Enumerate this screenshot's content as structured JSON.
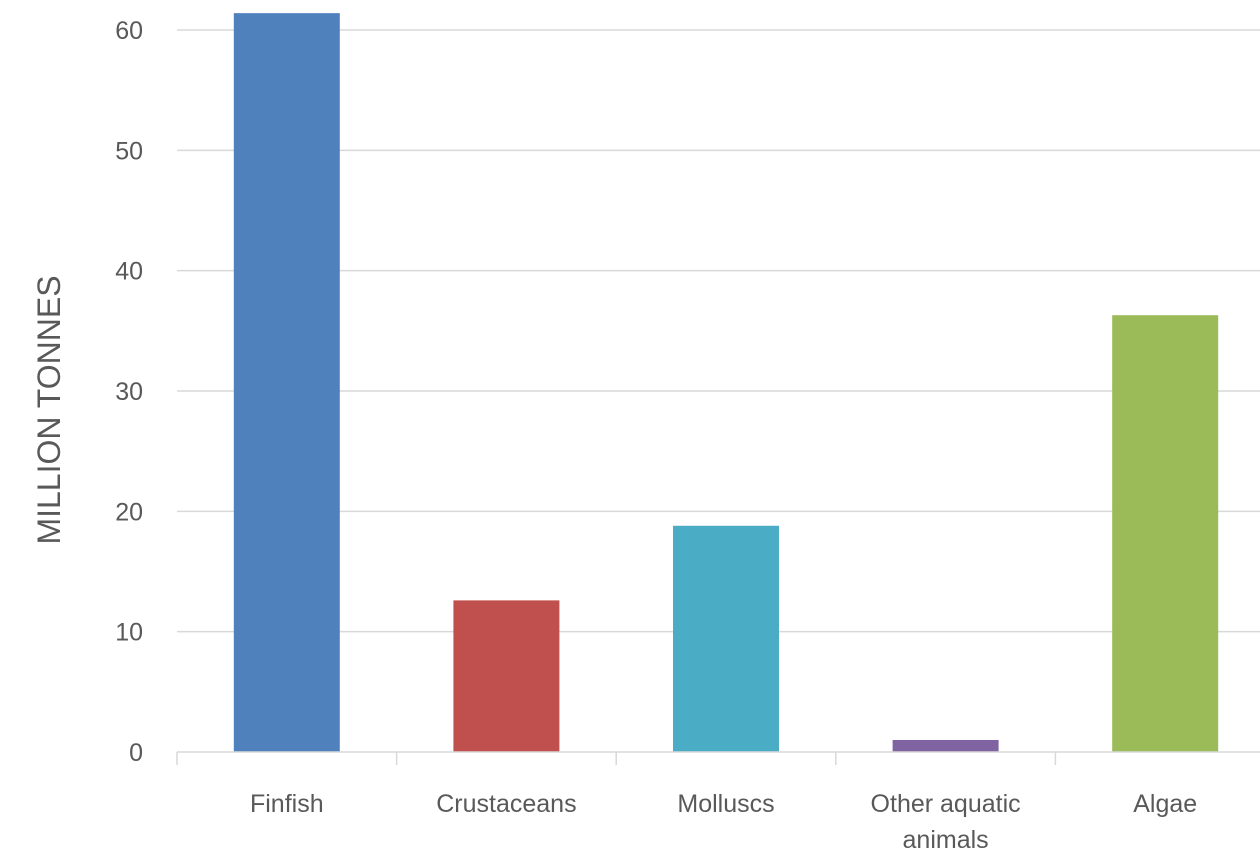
{
  "chart_data": {
    "type": "bar",
    "categories": [
      "Finfish",
      "Crustaceans",
      "Molluscs",
      "Other aquatic animals",
      "Algae"
    ],
    "category_lines": [
      [
        "Finfish"
      ],
      [
        "Crustaceans"
      ],
      [
        "Molluscs"
      ],
      [
        "Other aquatic",
        "animals"
      ],
      [
        "Algae"
      ]
    ],
    "values": [
      61.4,
      12.6,
      18.8,
      1.0,
      36.3
    ],
    "colors": [
      "#4f81bd",
      "#c0504d",
      "#4bacc6",
      "#8064a2",
      "#9bbb59"
    ],
    "title": "",
    "xlabel": "",
    "ylabel": "MILLION TONNES",
    "ylim": [
      0,
      60
    ],
    "yticks": [
      0,
      10,
      20,
      30,
      40,
      50,
      60
    ],
    "grid": true,
    "legend": "none"
  }
}
